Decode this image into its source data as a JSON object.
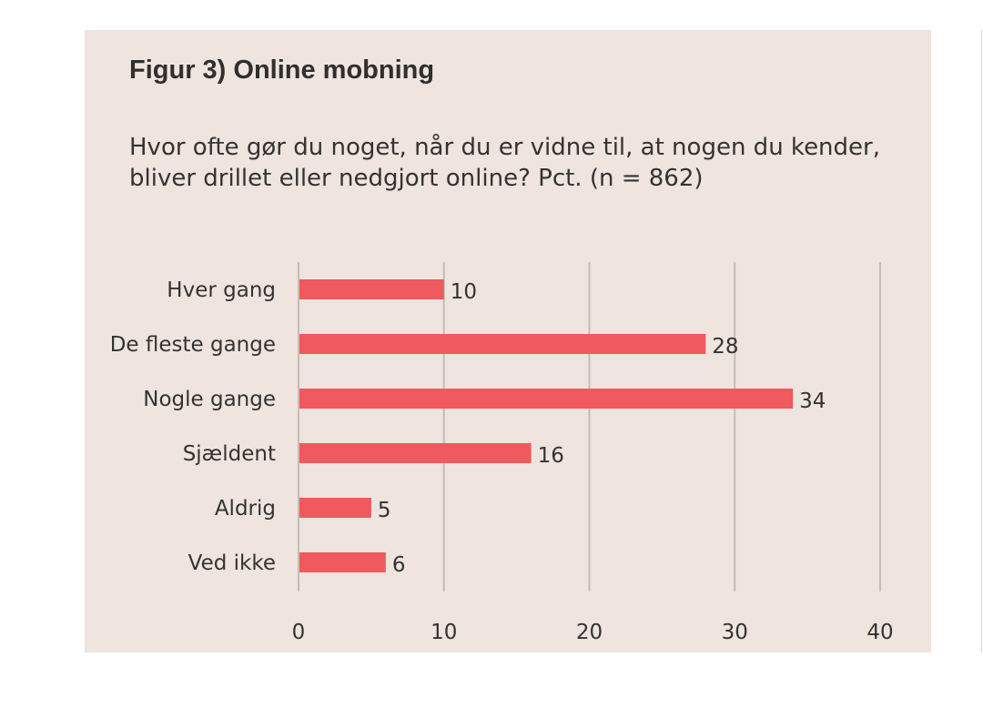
{
  "figure": {
    "title": "Figur 3) Online mobning",
    "subtitle": "Hvor ofte gør du noget, når du er vidne til, at nogen du kender, bliver drillet eller nedgjort online? Pct. (n = 862)"
  },
  "colors": {
    "panel_background": "#efe4de",
    "bar": "#f05a5e",
    "gridline": "#c4bdb8",
    "text": "#333333"
  },
  "chart_data": {
    "type": "bar",
    "orientation": "horizontal",
    "categories": [
      "Hver gang",
      "De fleste gange",
      "Nogle gange",
      "Sjældent",
      "Aldrig",
      "Ved ikke"
    ],
    "values": [
      10,
      28,
      34,
      16,
      5,
      6
    ],
    "value_labels": [
      "10",
      "28",
      "34",
      "16",
      "5",
      "6"
    ],
    "xlim": [
      0,
      40
    ],
    "xticks": [
      0,
      10,
      20,
      30,
      40
    ],
    "xtick_labels": [
      "0",
      "10",
      "20",
      "30",
      "40"
    ],
    "grid": "vertical",
    "legend": "none"
  }
}
